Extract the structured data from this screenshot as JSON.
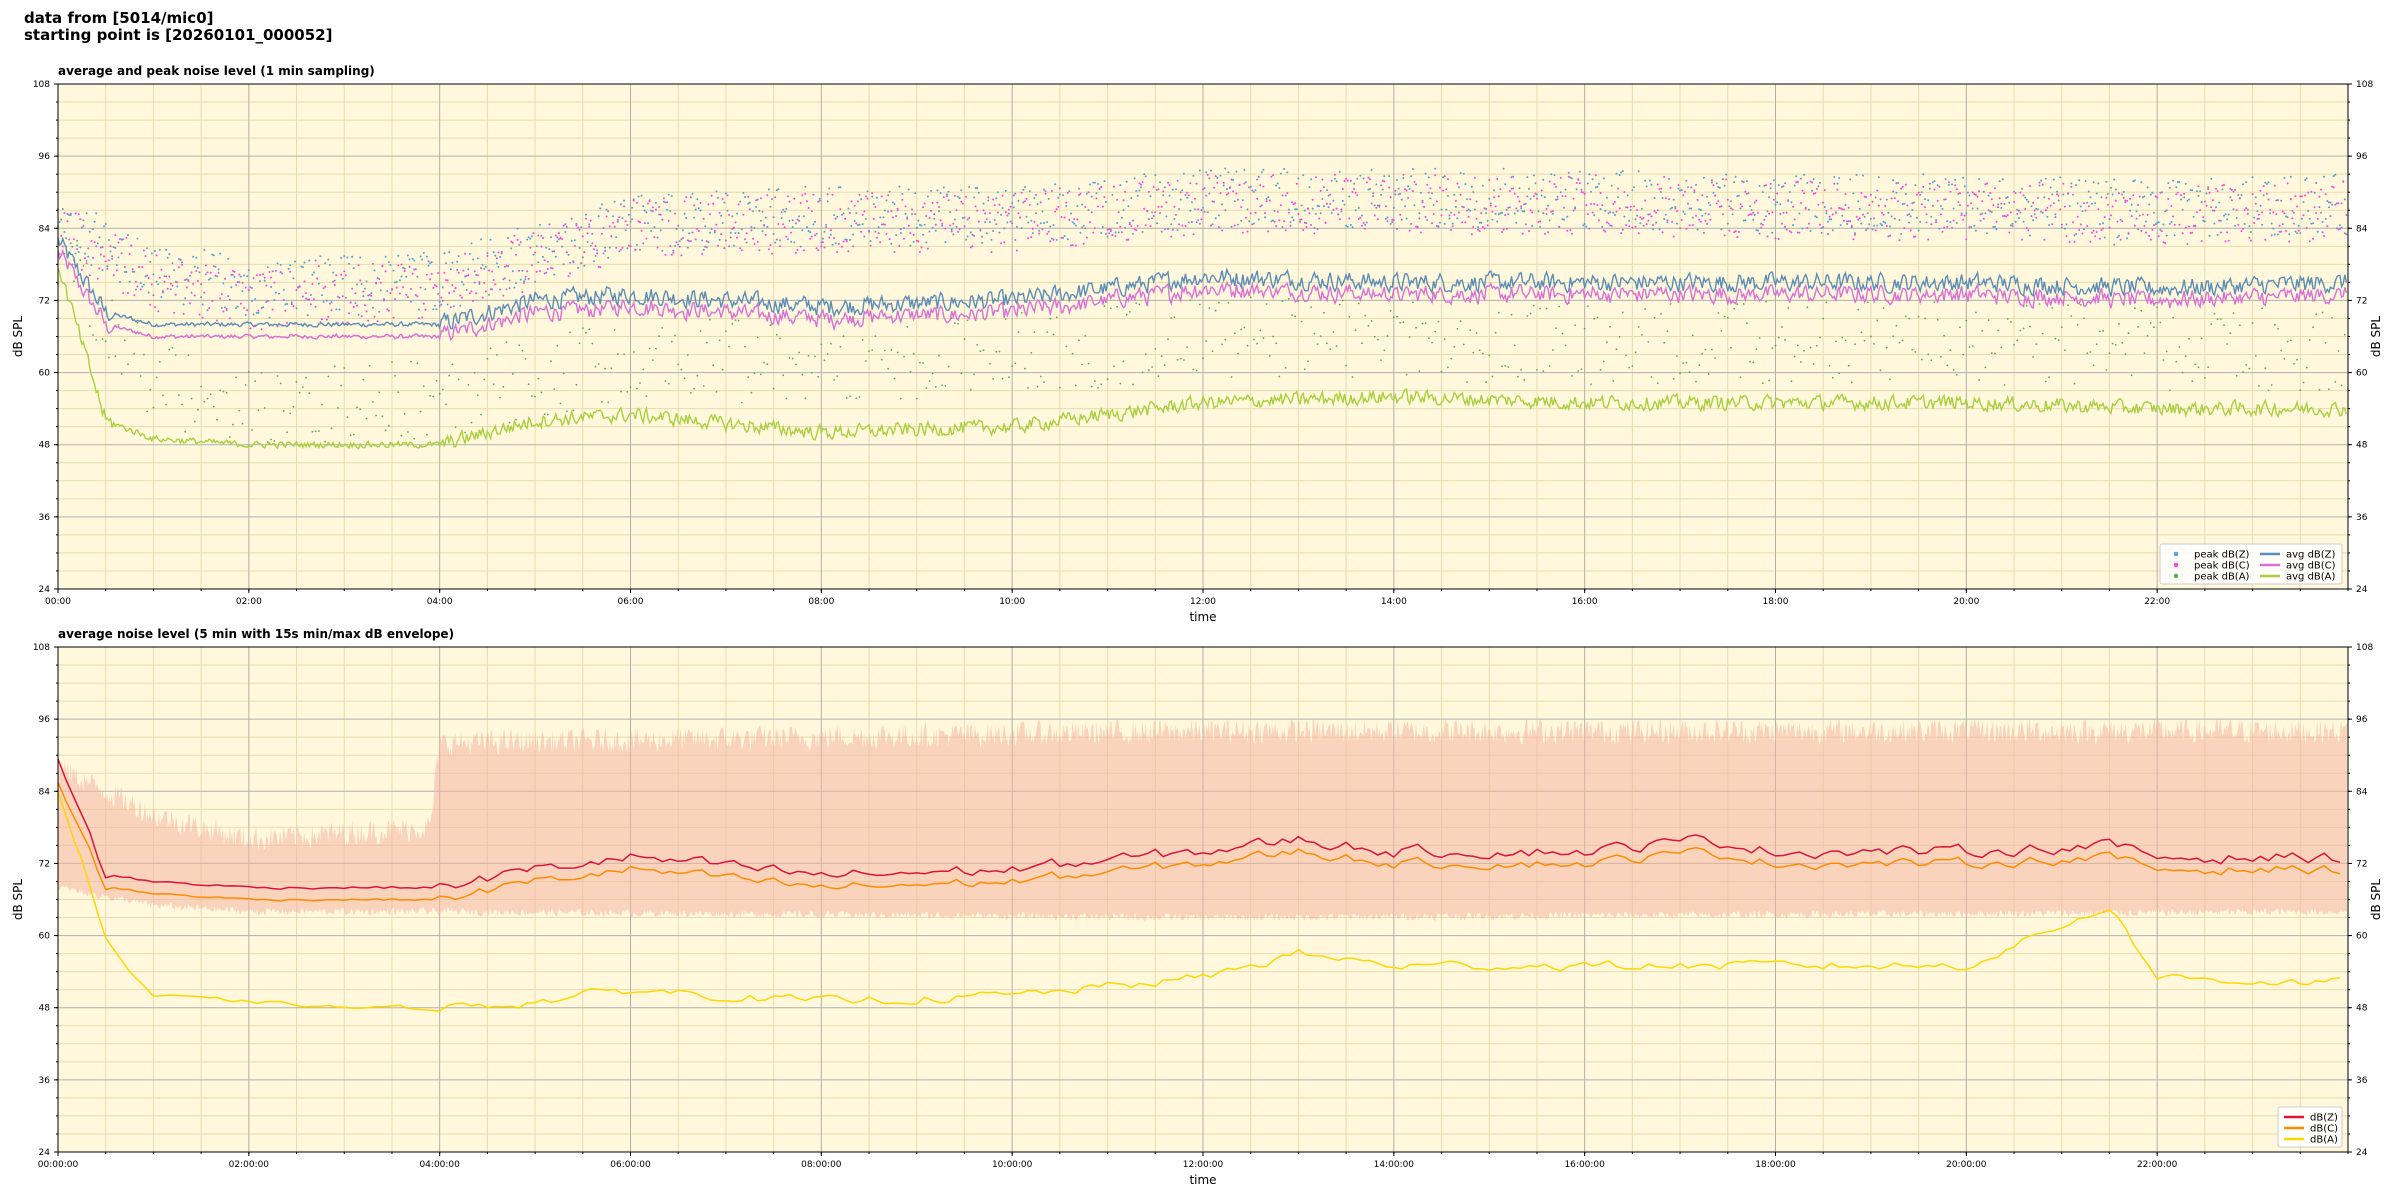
{
  "header": {
    "line1": "data from [5014/mic0]",
    "line2": "starting point is [20260101_000052]"
  },
  "colors": {
    "background": "#fff8dc",
    "grid_major": "#b0b0b0",
    "grid_minor": "#e8dcae",
    "peak_z": "#4fa3d1",
    "peak_c": "#ff44dd",
    "peak_a": "#55aa55",
    "avg_z": "#5b8db8",
    "avg_c": "#da70d6",
    "avg_a": "#a8d040",
    "dbz": "#dc143c",
    "dbc": "#ff8c00",
    "dba": "#ffd700",
    "envelope": "#f4b4a0"
  },
  "chart_data": [
    {
      "type": "line",
      "title": "average and peak noise level (1 min sampling)",
      "xlabel": "time",
      "ylabel": "dB SPL",
      "ylim": [
        24,
        108
      ],
      "xlim_hours": [
        0,
        24
      ],
      "yticks": [
        "24",
        "36",
        "48",
        "60",
        "72",
        "84",
        "96",
        "108"
      ],
      "xticks": [
        "00:00",
        "02:00",
        "04:00",
        "06:00",
        "08:00",
        "10:00",
        "12:00",
        "14:00",
        "16:00",
        "18:00",
        "20:00",
        "22:00"
      ],
      "grid": true,
      "legend_position": "bottom-right",
      "legend": [
        "peak dB(Z)",
        "peak dB(C)",
        "peak dB(A)",
        "avg dB(Z)",
        "avg dB(C)",
        "avg dB(A)"
      ],
      "series": [
        {
          "name": "avg dB(Z)",
          "x_hours": [
            0,
            0.5,
            1,
            2,
            3,
            4,
            5,
            6,
            8,
            10,
            12,
            14,
            16,
            18,
            20,
            22,
            24
          ],
          "values": [
            82,
            70,
            68,
            68,
            68,
            68,
            72,
            73,
            71,
            72,
            76,
            75,
            75,
            75,
            75,
            74,
            75
          ]
        },
        {
          "name": "avg dB(C)",
          "x_hours": [
            0,
            0.5,
            1,
            2,
            3,
            4,
            5,
            6,
            8,
            10,
            12,
            14,
            16,
            18,
            20,
            22,
            24
          ],
          "values": [
            80,
            68,
            66,
            66,
            66,
            66,
            70,
            71,
            69,
            70,
            74,
            73,
            73,
            73,
            73,
            72,
            73
          ]
        },
        {
          "name": "avg dB(A)",
          "x_hours": [
            0,
            0.5,
            1,
            2,
            3,
            4,
            5,
            6,
            8,
            10,
            12,
            14,
            16,
            18,
            20,
            22,
            24
          ],
          "values": [
            78,
            52,
            49,
            48,
            48,
            48,
            52,
            53,
            50,
            51,
            55,
            56,
            55,
            55,
            55,
            54,
            54
          ]
        },
        {
          "name": "peak dB(Z)",
          "x_hours": [
            0,
            1,
            2,
            4,
            6,
            8,
            10,
            12,
            14,
            16,
            18,
            20,
            22,
            24
          ],
          "values": [
            85,
            77,
            74,
            75,
            85,
            86,
            86,
            89,
            89,
            89,
            88,
            88,
            87,
            88
          ]
        },
        {
          "name": "peak dB(C)",
          "x_hours": [
            0,
            1,
            2,
            4,
            6,
            8,
            10,
            12,
            14,
            16,
            18,
            20,
            22,
            24
          ],
          "values": [
            84,
            75,
            72,
            74,
            84,
            85,
            85,
            88,
            88,
            88,
            87,
            87,
            86,
            87
          ]
        },
        {
          "name": "peak dB(A)",
          "x_hours": [
            0,
            1,
            2,
            4,
            6,
            8,
            10,
            12,
            14,
            16,
            18,
            20,
            22,
            24
          ],
          "values": [
            80,
            58,
            55,
            56,
            62,
            62,
            63,
            66,
            65,
            65,
            65,
            65,
            64,
            64
          ]
        }
      ]
    },
    {
      "type": "line",
      "title": "average noise level (5 min with 15s min/max dB envelope)",
      "xlabel": "time",
      "ylabel": "dB SPL",
      "ylim": [
        24,
        108
      ],
      "xlim_hours": [
        0,
        24
      ],
      "yticks": [
        "24",
        "36",
        "48",
        "60",
        "72",
        "84",
        "96",
        "108"
      ],
      "xticks": [
        "00:00:00",
        "02:00:00",
        "04:00:00",
        "06:00:00",
        "08:00:00",
        "10:00:00",
        "12:00:00",
        "14:00:00",
        "16:00:00",
        "18:00:00",
        "20:00:00",
        "22:00:00"
      ],
      "grid": true,
      "legend_position": "bottom-right",
      "legend": [
        "dB(Z)",
        "dB(C)",
        "dB(A)"
      ],
      "series": [
        {
          "name": "dB(Z)",
          "x_hours": [
            0,
            0.5,
            1,
            2,
            3,
            4,
            5,
            6,
            8,
            10,
            12,
            13,
            14,
            16,
            17.3,
            18,
            20,
            21.5,
            22,
            24
          ],
          "values": [
            90,
            70,
            69,
            68,
            68,
            68,
            71,
            73,
            70,
            71,
            74,
            76,
            74,
            74,
            76,
            74,
            74,
            75,
            73,
            73
          ]
        },
        {
          "name": "dB(C)",
          "x_hours": [
            0,
            0.5,
            1,
            2,
            3,
            4,
            5,
            6,
            8,
            10,
            12,
            13,
            14,
            16,
            17.3,
            18,
            20,
            21.5,
            22,
            24
          ],
          "values": [
            86,
            68,
            67,
            66,
            66,
            66,
            69,
            71,
            68,
            69,
            72,
            74,
            72,
            72,
            74,
            72,
            72,
            73,
            71,
            71
          ]
        },
        {
          "name": "dB(A)",
          "x_hours": [
            0,
            0.5,
            0.75,
            1,
            2,
            3,
            4,
            5,
            6,
            8,
            10,
            12,
            13,
            14,
            16,
            18,
            20,
            21.5,
            22,
            24
          ],
          "values": [
            84,
            60,
            54,
            50,
            49,
            48,
            48,
            49,
            51,
            49,
            50,
            53,
            57,
            55,
            55,
            55,
            55,
            65,
            53,
            52
          ]
        }
      ],
      "envelope": {
        "x_hours": [
          0,
          1,
          2,
          3.9,
          4,
          12,
          24
        ],
        "min": [
          68,
          65,
          64,
          64,
          64,
          63,
          64
        ],
        "max": [
          88,
          80,
          76,
          78,
          92,
          94,
          94
        ]
      }
    }
  ]
}
